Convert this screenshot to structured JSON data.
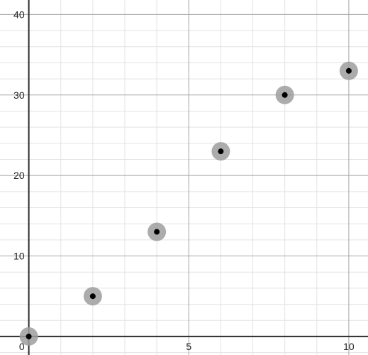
{
  "chart_data": {
    "type": "scatter",
    "x": [
      0,
      2,
      4,
      6,
      8,
      10
    ],
    "y": [
      0,
      5,
      13,
      23,
      30,
      33
    ],
    "xlim": [
      -0.9,
      10.6
    ],
    "ylim": [
      -2.3,
      41.8
    ],
    "x_ticks": [
      0,
      5,
      10
    ],
    "y_ticks": [
      10,
      20,
      30,
      40
    ],
    "x_tick_labels": [
      "0",
      "5",
      "10"
    ],
    "y_tick_labels": [
      "10",
      "20",
      "30",
      "40"
    ],
    "major_grid_step": {
      "x": 5,
      "y": 10
    },
    "minor_grid_step": {
      "x": 1,
      "y": 2
    },
    "grid": true,
    "title": "",
    "xlabel": "",
    "ylabel": ""
  },
  "colors": {
    "background": "#ffffff",
    "minor_grid": "#e3e3e3",
    "major_grid": "#a5a5a5",
    "axis": "#2b2b2b",
    "point_halo": "#9e9e9e",
    "point": "#000000"
  }
}
